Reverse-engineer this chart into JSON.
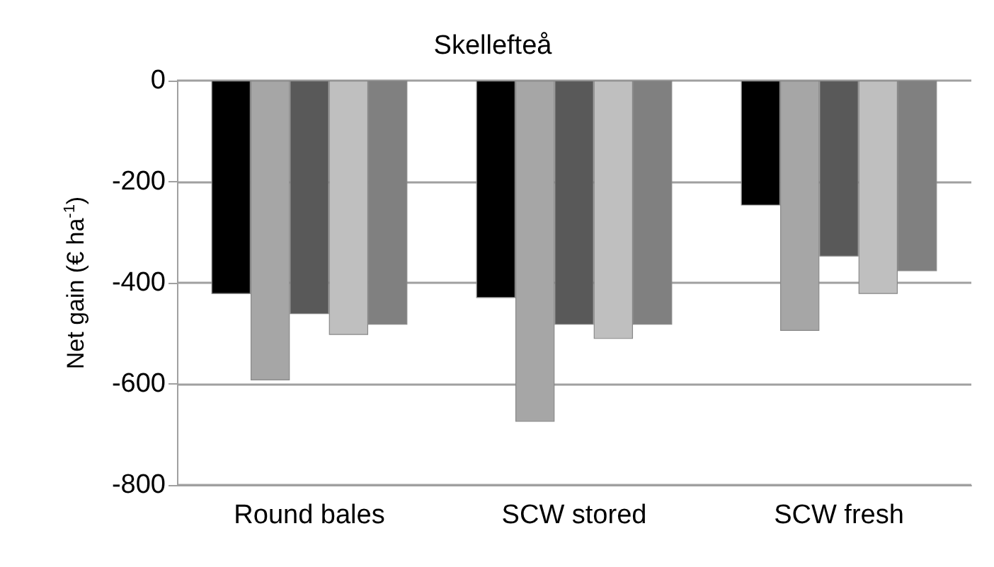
{
  "chart_data": {
    "type": "bar",
    "title": "Skellefteå",
    "ylabel": "Net gain (€ ha$^{-1}$)",
    "categories": [
      "Round bales",
      "SCW stored",
      "SCW fresh"
    ],
    "series": [
      {
        "color": "#000000",
        "values": [
          -422,
          -430,
          -247
        ]
      },
      {
        "color": "#a6a6a6",
        "values": [
          -593,
          -675,
          -495
        ]
      },
      {
        "color": "#595959",
        "values": [
          -462,
          -483,
          -348
        ]
      },
      {
        "color": "#bfbfbf",
        "values": [
          -503,
          -511,
          -422
        ]
      },
      {
        "color": "#808080",
        "values": [
          -483,
          -483,
          -377
        ]
      }
    ],
    "ylim": [
      -800,
      0
    ],
    "yticks": [
      -800,
      -600,
      -400,
      -200,
      0
    ],
    "grid": "y"
  }
}
